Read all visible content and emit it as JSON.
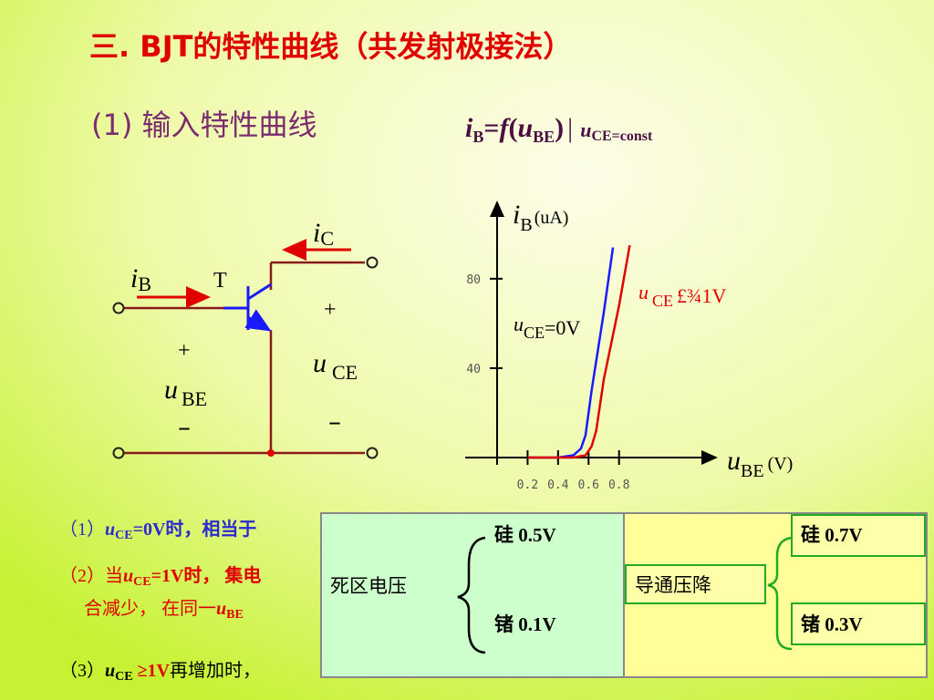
{
  "title": "三. BJT的特性曲线（共发射极接法）",
  "subtitle": {
    "label": "(1) 输入特性曲线",
    "formula": [
      "i",
      "B",
      "=",
      "f",
      "(",
      "u",
      "BE",
      ")",
      "|",
      "u",
      "CE=const"
    ]
  },
  "circuit": {
    "ic": [
      "i",
      "C"
    ],
    "ib": [
      "i",
      "B"
    ],
    "transistor": "T",
    "plus_ce": "+",
    "uce": [
      "u",
      "CE"
    ],
    "minus_ce": "–",
    "plus_be": "+",
    "ube": [
      "u",
      "BE"
    ],
    "minus_be": "–"
  },
  "chart_data": {
    "type": "line",
    "y_label": [
      "i",
      "B",
      "(uA)"
    ],
    "x_label": [
      "u",
      "BE",
      "(V)"
    ],
    "xlim": [
      0,
      1.4
    ],
    "ylim": [
      0,
      115
    ],
    "xticks": [
      0.2,
      0.4,
      0.6,
      0.8
    ],
    "yticks": [
      40,
      80
    ],
    "series": [
      {
        "name": [
          "u",
          "CE",
          "=0V"
        ],
        "color": "#1a1aff",
        "x": [
          0.2,
          0.4,
          0.5,
          0.55,
          0.58,
          0.62,
          0.7,
          0.76
        ],
        "values": [
          0,
          0,
          1,
          4,
          10,
          30,
          65,
          94
        ]
      },
      {
        "name": [
          "u",
          "CE",
          "£¾1V"
        ],
        "color": "#e00000",
        "x": [
          0.2,
          0.5,
          0.58,
          0.62,
          0.65,
          0.7,
          0.8,
          0.87
        ],
        "values": [
          0,
          0,
          1,
          5,
          12,
          35,
          68,
          95
        ]
      }
    ]
  },
  "notes": [
    [
      "（1）",
      "u",
      "CE",
      "=0V时，相当于"
    ],
    [
      "（2）当",
      "u",
      "CE",
      "=1V时， 集电"
    ],
    [
      "合减少， 在同一",
      "u",
      "BE"
    ],
    [
      "（3）",
      "u",
      "CE",
      " ≥1V",
      "再增加时，"
    ]
  ],
  "overlay": {
    "dead_zone": "死区电压",
    "si_dead": "硅 0.5V",
    "ge_dead": "锗 0.1V",
    "conduction": "导通压降",
    "si_on": "硅 0.7V",
    "ge_on": "锗 0.3V"
  }
}
